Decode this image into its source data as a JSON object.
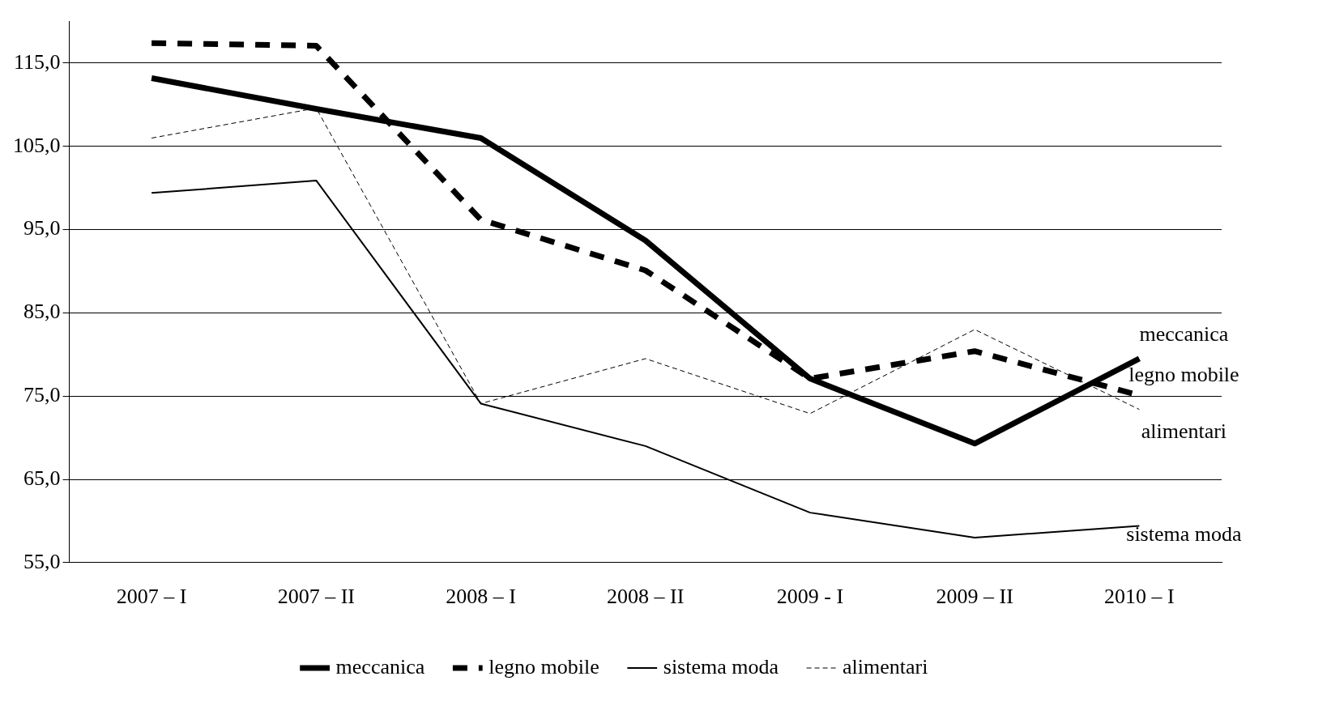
{
  "chart_data": {
    "type": "line",
    "categories": [
      "2007 – I",
      "2007 – II",
      "2008 – I",
      "2008 – II",
      "2009 - I",
      "2009 – II",
      "2010 – I"
    ],
    "series": [
      {
        "name": "meccanica",
        "color": "#000000",
        "line_style": "solid",
        "values": [
          113.2,
          109.5,
          106.0,
          93.7,
          77.1,
          69.3,
          79.5
        ]
      },
      {
        "name": "legno mobile",
        "color": "#000000",
        "line_style": "dashed",
        "values": [
          117.4,
          117.1,
          96.2,
          90.1,
          77.1,
          80.4,
          75.1
        ]
      },
      {
        "name": "sistema moda",
        "color": "#000000",
        "line_style": "solid",
        "values": [
          99.4,
          100.9,
          74.1,
          69.0,
          61.0,
          58.0,
          59.4
        ]
      },
      {
        "name": "alimentari",
        "color": "#000000",
        "line_style": "dashed",
        "values": [
          106.0,
          109.6,
          74.1,
          79.5,
          72.9,
          83.0,
          73.4
        ]
      }
    ],
    "ylim": [
      55,
      120
    ],
    "yticks": [
      {
        "value": 55,
        "label": "55,0"
      },
      {
        "value": 65,
        "label": "65,0"
      },
      {
        "value": 75,
        "label": "75,0"
      },
      {
        "value": 85,
        "label": "85,0"
      },
      {
        "value": 95,
        "label": "95,0"
      },
      {
        "value": 105,
        "label": "105,0"
      },
      {
        "value": 115,
        "label": "115,0"
      }
    ],
    "grid": "y",
    "legend": "bottom",
    "marker": "none",
    "annotations": [
      "meccanica",
      "legno mobile",
      "alimentari",
      "sistema moda"
    ]
  }
}
